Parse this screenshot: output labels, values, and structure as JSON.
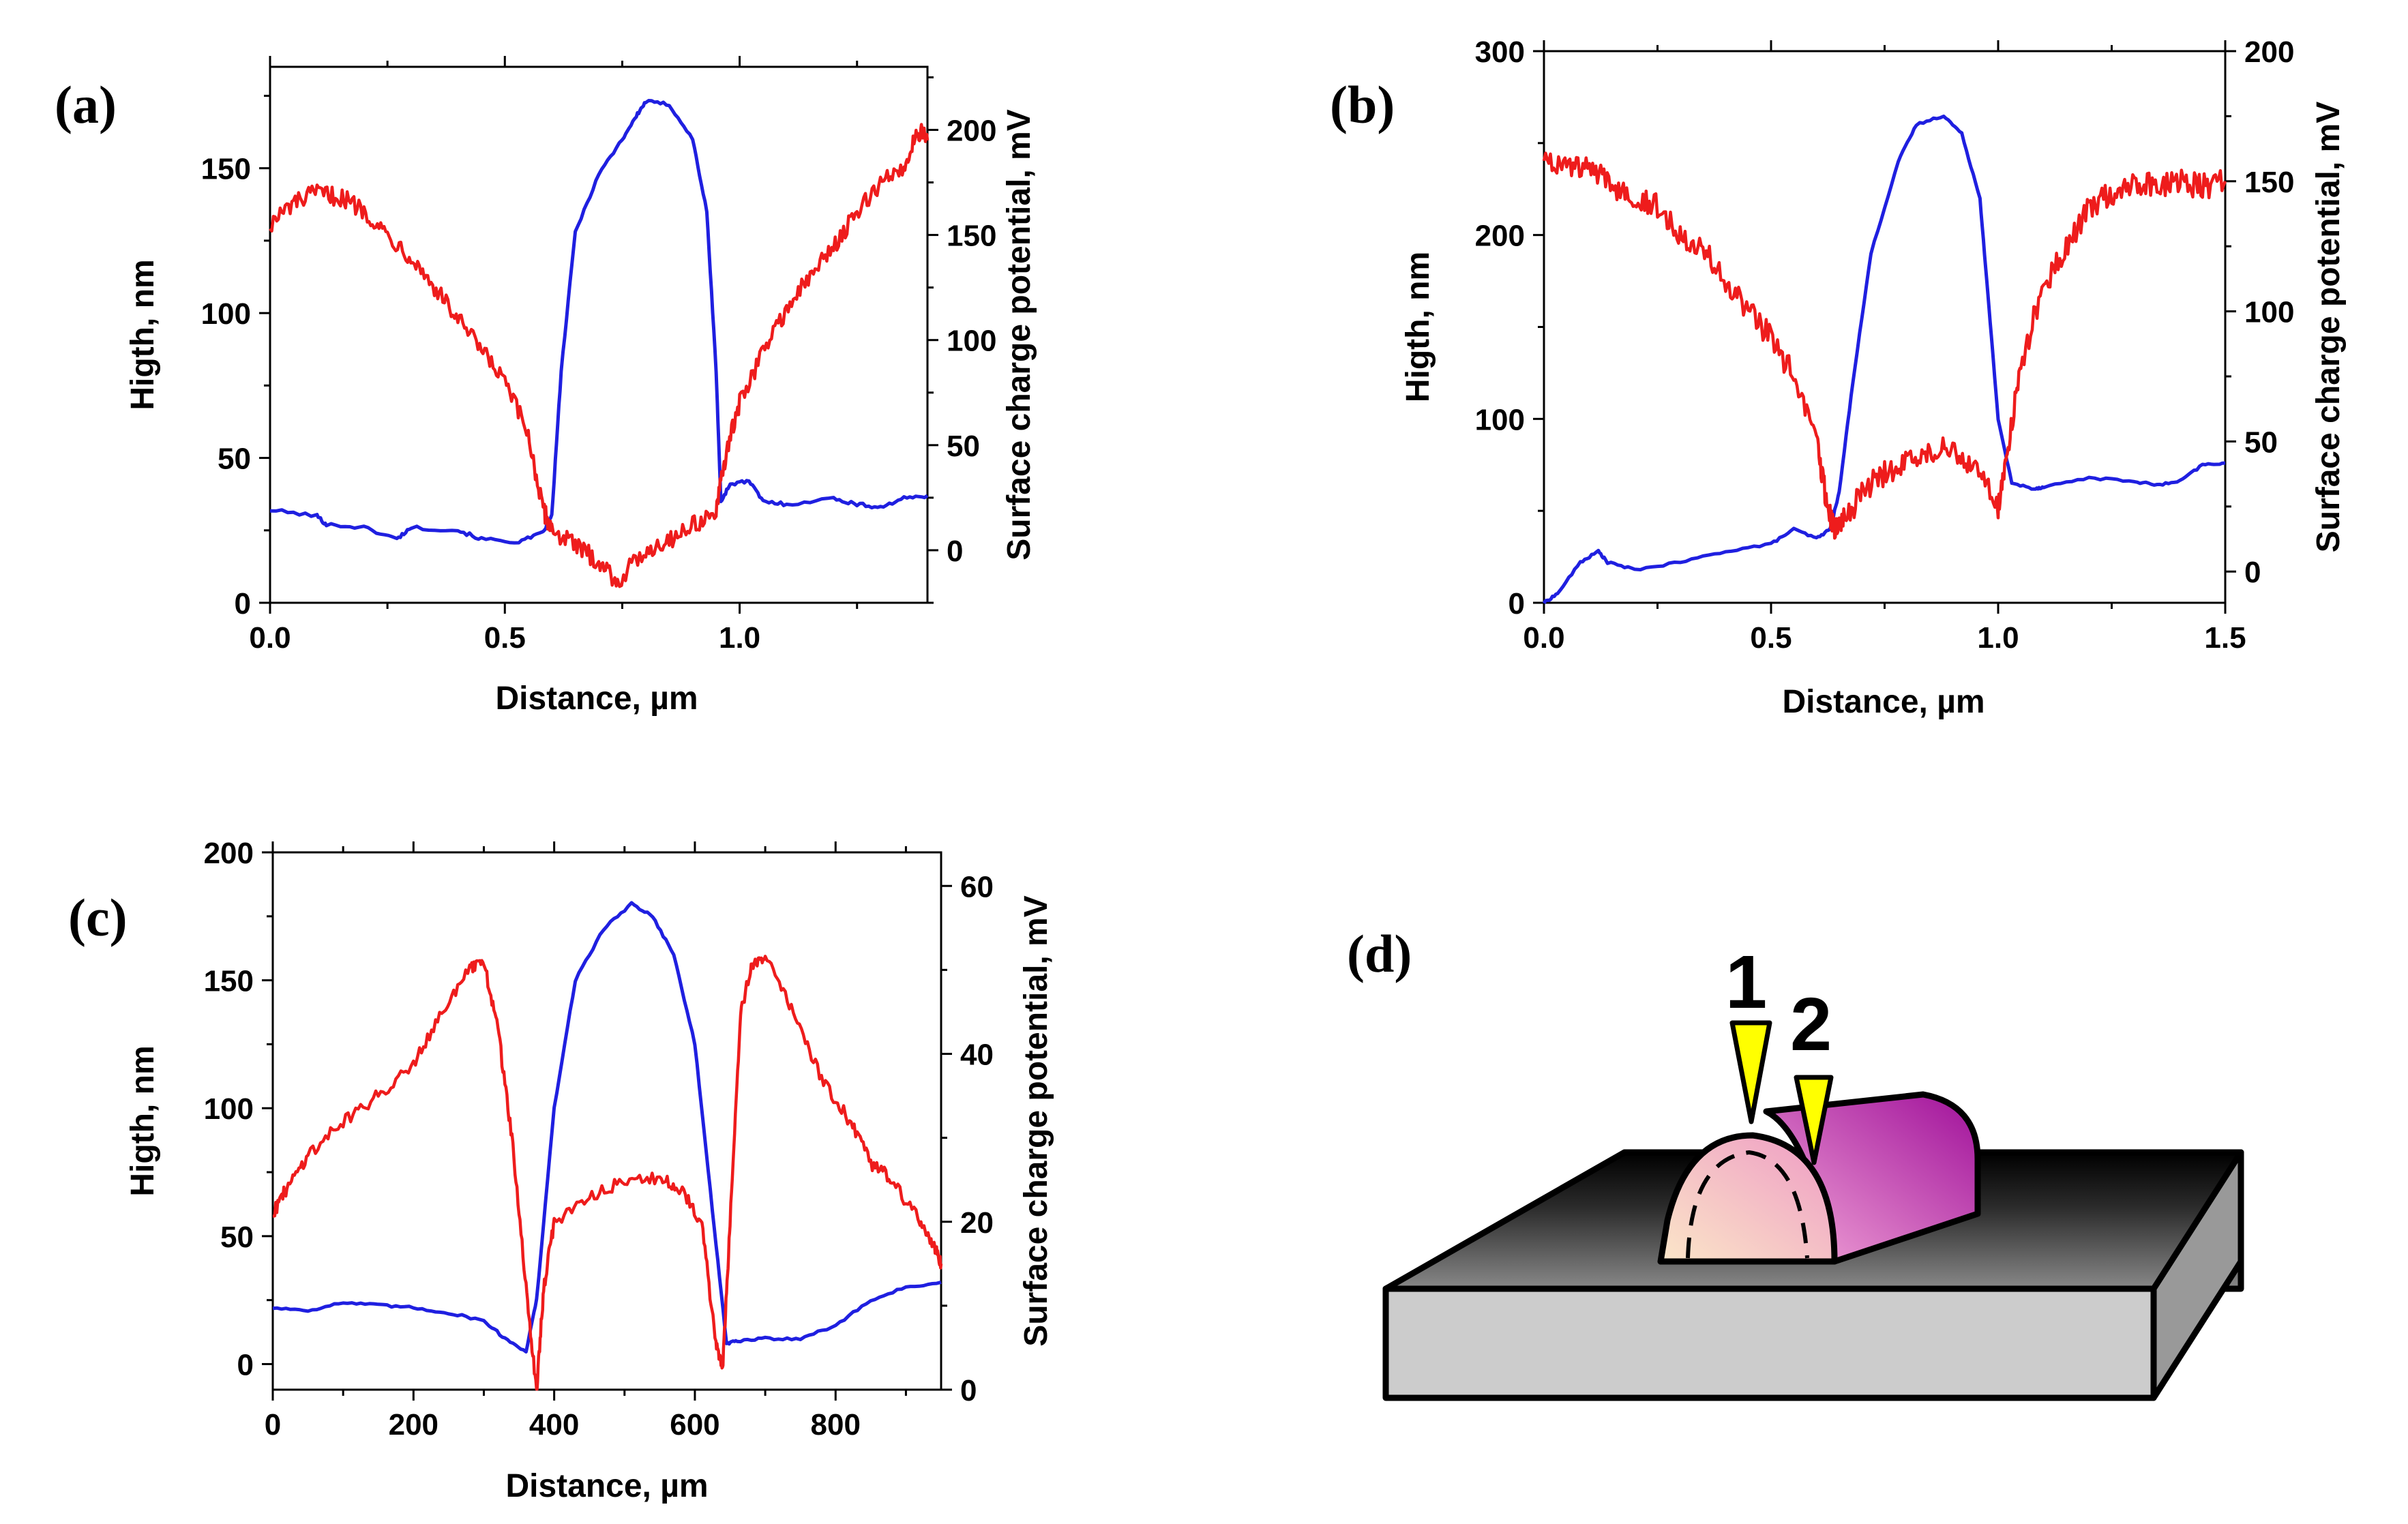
{
  "figure_title": "",
  "chart_data": [
    {
      "id": "a",
      "label": "(a)",
      "type": "line",
      "xlabel": "Distance, µm",
      "ylabel": "Higth, nm",
      "y2label": "Surface charge potential, mV",
      "xlim": [
        0,
        1.4
      ],
      "ylim": [
        0,
        185
      ],
      "y2lim": [
        -25,
        230
      ],
      "xticks": [
        0.0,
        0.5,
        1.0
      ],
      "xtick_labels": [
        "0.0",
        "0.5",
        "1.0"
      ],
      "yticks": [
        0,
        50,
        100,
        150
      ],
      "ytick_labels": [
        "0",
        "50",
        "100",
        "150"
      ],
      "y2ticks": [
        0,
        50,
        100,
        150,
        200
      ],
      "y2tick_labels": [
        "0",
        "50",
        "100",
        "150",
        "200"
      ],
      "series": [
        {
          "name": "Height",
          "axis": "left",
          "color": "#1f1fe0",
          "noise": 0.6,
          "points": [
            [
              0.0,
              32
            ],
            [
              0.1,
              30
            ],
            [
              0.12,
              27
            ],
            [
              0.2,
              26
            ],
            [
              0.27,
              22
            ],
            [
              0.3,
              26
            ],
            [
              0.4,
              25
            ],
            [
              0.45,
              22
            ],
            [
              0.53,
              21
            ],
            [
              0.58,
              24
            ],
            [
              0.6,
              30
            ],
            [
              0.62,
              80
            ],
            [
              0.65,
              128
            ],
            [
              0.7,
              148
            ],
            [
              0.75,
              160
            ],
            [
              0.78,
              168
            ],
            [
              0.8,
              173
            ],
            [
              0.85,
              172
            ],
            [
              0.9,
              160
            ],
            [
              0.93,
              135
            ],
            [
              0.95,
              80
            ],
            [
              0.96,
              35
            ],
            [
              0.98,
              41
            ],
            [
              1.02,
              42
            ],
            [
              1.05,
              35
            ],
            [
              1.1,
              34
            ],
            [
              1.2,
              36
            ],
            [
              1.25,
              34
            ],
            [
              1.3,
              33
            ],
            [
              1.35,
              36
            ],
            [
              1.4,
              37
            ]
          ]
        },
        {
          "name": "Surface charge potential",
          "axis": "right",
          "color": "#ee1c1c",
          "noise": 4.5,
          "points": [
            [
              0.0,
              155
            ],
            [
              0.05,
              165
            ],
            [
              0.1,
              170
            ],
            [
              0.15,
              168
            ],
            [
              0.2,
              162
            ],
            [
              0.25,
              150
            ],
            [
              0.3,
              140
            ],
            [
              0.35,
              125
            ],
            [
              0.4,
              110
            ],
            [
              0.45,
              95
            ],
            [
              0.5,
              80
            ],
            [
              0.55,
              55
            ],
            [
              0.58,
              20
            ],
            [
              0.6,
              10
            ],
            [
              0.65,
              2
            ],
            [
              0.7,
              -5
            ],
            [
              0.74,
              -15
            ],
            [
              0.8,
              0
            ],
            [
              0.85,
              5
            ],
            [
              0.9,
              12
            ],
            [
              0.95,
              18
            ],
            [
              0.97,
              45
            ],
            [
              1.0,
              70
            ],
            [
              1.05,
              95
            ],
            [
              1.1,
              115
            ],
            [
              1.15,
              130
            ],
            [
              1.2,
              145
            ],
            [
              1.25,
              160
            ],
            [
              1.3,
              175
            ],
            [
              1.35,
              182
            ],
            [
              1.38,
              200
            ],
            [
              1.4,
              195
            ]
          ]
        }
      ]
    },
    {
      "id": "b",
      "label": "(b)",
      "type": "line",
      "xlabel": "Distance, µm",
      "ylabel": "Higth, nm",
      "y2label": "Surface charge potential, mV",
      "xlim": [
        0,
        1.5
      ],
      "ylim": [
        0,
        300
      ],
      "y2lim": [
        -12,
        200
      ],
      "xticks": [
        0.0,
        0.5,
        1.0,
        1.5
      ],
      "xtick_labels": [
        "0.0",
        "0.5",
        "1.0",
        "1.5"
      ],
      "yticks": [
        0,
        100,
        200,
        300
      ],
      "ytick_labels": [
        "0",
        "100",
        "200",
        "300"
      ],
      "y2ticks": [
        0,
        50,
        100,
        150,
        200
      ],
      "y2tick_labels": [
        "0",
        "50",
        "100",
        "150",
        "200"
      ],
      "series": [
        {
          "name": "Height",
          "axis": "left",
          "color": "#1f1fe0",
          "noise": 0.6,
          "points": [
            [
              0.0,
              0
            ],
            [
              0.03,
              5
            ],
            [
              0.08,
              22
            ],
            [
              0.12,
              28
            ],
            [
              0.14,
              22
            ],
            [
              0.2,
              18
            ],
            [
              0.3,
              22
            ],
            [
              0.4,
              28
            ],
            [
              0.5,
              32
            ],
            [
              0.55,
              40
            ],
            [
              0.6,
              35
            ],
            [
              0.63,
              40
            ],
            [
              0.65,
              60
            ],
            [
              0.68,
              120
            ],
            [
              0.72,
              190
            ],
            [
              0.78,
              240
            ],
            [
              0.82,
              260
            ],
            [
              0.88,
              265
            ],
            [
              0.92,
              255
            ],
            [
              0.96,
              220
            ],
            [
              0.98,
              160
            ],
            [
              1.0,
              100
            ],
            [
              1.03,
              65
            ],
            [
              1.08,
              62
            ],
            [
              1.1,
              63
            ],
            [
              1.2,
              68
            ],
            [
              1.3,
              66
            ],
            [
              1.35,
              64
            ],
            [
              1.4,
              66
            ],
            [
              1.45,
              75
            ],
            [
              1.5,
              76
            ]
          ]
        },
        {
          "name": "Surface charge potential",
          "axis": "right",
          "color": "#ee1c1c",
          "noise": 5,
          "points": [
            [
              0.0,
              160
            ],
            [
              0.05,
              155
            ],
            [
              0.1,
              155
            ],
            [
              0.15,
              148
            ],
            [
              0.2,
              145
            ],
            [
              0.25,
              140
            ],
            [
              0.3,
              130
            ],
            [
              0.35,
              125
            ],
            [
              0.4,
              110
            ],
            [
              0.45,
              100
            ],
            [
              0.5,
              90
            ],
            [
              0.55,
              75
            ],
            [
              0.6,
              50
            ],
            [
              0.62,
              30
            ],
            [
              0.64,
              15
            ],
            [
              0.66,
              20
            ],
            [
              0.7,
              30
            ],
            [
              0.75,
              38
            ],
            [
              0.8,
              42
            ],
            [
              0.85,
              45
            ],
            [
              0.9,
              48
            ],
            [
              0.95,
              40
            ],
            [
              1.0,
              25
            ],
            [
              1.02,
              45
            ],
            [
              1.05,
              80
            ],
            [
              1.1,
              110
            ],
            [
              1.15,
              125
            ],
            [
              1.2,
              140
            ],
            [
              1.25,
              145
            ],
            [
              1.3,
              150
            ],
            [
              1.35,
              148
            ],
            [
              1.4,
              150
            ],
            [
              1.45,
              148
            ],
            [
              1.5,
              150
            ]
          ]
        }
      ]
    },
    {
      "id": "c",
      "label": "(c)",
      "type": "line",
      "xlabel": "Distance, µm",
      "ylabel": "Higth, nm",
      "y2label": "Surface charge potential, mV",
      "xlim": [
        0,
        950
      ],
      "ylim": [
        -10,
        200
      ],
      "y2lim": [
        0,
        64
      ],
      "xticks": [
        0,
        200,
        400,
        600,
        800
      ],
      "xtick_labels": [
        "0",
        "200",
        "400",
        "600",
        "800"
      ],
      "yticks": [
        0,
        50,
        100,
        150,
        200
      ],
      "ytick_labels": [
        "0",
        "50",
        "100",
        "150",
        "200"
      ],
      "y2ticks": [
        0,
        20,
        40,
        60
      ],
      "y2tick_labels": [
        "0",
        "20",
        "40",
        "60"
      ],
      "series": [
        {
          "name": "Height",
          "axis": "left",
          "color": "#1f1fe0",
          "noise": 0.5,
          "points": [
            [
              0,
              22
            ],
            [
              50,
              21
            ],
            [
              100,
              24
            ],
            [
              150,
              23
            ],
            [
              200,
              22
            ],
            [
              250,
              20
            ],
            [
              300,
              17
            ],
            [
              330,
              10
            ],
            [
              360,
              5
            ],
            [
              375,
              25
            ],
            [
              400,
              100
            ],
            [
              430,
              150
            ],
            [
              470,
              170
            ],
            [
              510,
              180
            ],
            [
              540,
              175
            ],
            [
              570,
              160
            ],
            [
              600,
              125
            ],
            [
              625,
              60
            ],
            [
              645,
              8
            ],
            [
              660,
              9
            ],
            [
              700,
              10
            ],
            [
              750,
              10
            ],
            [
              800,
              15
            ],
            [
              850,
              25
            ],
            [
              900,
              30
            ],
            [
              950,
              32
            ]
          ]
        },
        {
          "name": "Surface charge potential",
          "axis": "right",
          "color": "#ee1c1c",
          "noise": 0.8,
          "points": [
            [
              0,
              21
            ],
            [
              20,
              24
            ],
            [
              50,
              28
            ],
            [
              100,
              32
            ],
            [
              150,
              35
            ],
            [
              200,
              39
            ],
            [
              240,
              45
            ],
            [
              280,
              50
            ],
            [
              300,
              51
            ],
            [
              320,
              43
            ],
            [
              340,
              30
            ],
            [
              360,
              12
            ],
            [
              375,
              0
            ],
            [
              385,
              12
            ],
            [
              400,
              20
            ],
            [
              450,
              23
            ],
            [
              500,
              25
            ],
            [
              550,
              25
            ],
            [
              580,
              24
            ],
            [
              610,
              20
            ],
            [
              630,
              5
            ],
            [
              640,
              3
            ],
            [
              650,
              20
            ],
            [
              665,
              45
            ],
            [
              680,
              50
            ],
            [
              700,
              52
            ],
            [
              740,
              45
            ],
            [
              780,
              37
            ],
            [
              820,
              32
            ],
            [
              850,
              27
            ],
            [
              880,
              25
            ],
            [
              920,
              20
            ],
            [
              940,
              17
            ],
            [
              950,
              15
            ]
          ]
        }
      ]
    }
  ],
  "panel_d": {
    "label": "(d)",
    "probe_1": "1",
    "probe_2": "2",
    "colors": {
      "substrate_top": "#4a4a4a",
      "substrate_front": "#cccccc",
      "ridge_body": "#b01aa8",
      "ridge_front": "#f0b0c8",
      "probe": "#ffff00"
    }
  }
}
